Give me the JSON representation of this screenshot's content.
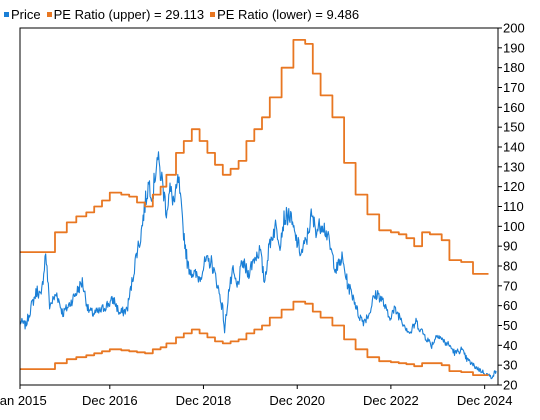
{
  "chart_data": {
    "type": "line",
    "xlim": [
      "2015-01-01",
      "2025-03-15"
    ],
    "ylim": [
      20,
      200
    ],
    "y_axis_position": "right",
    "grid": false,
    "legend_position": "top-left",
    "x_tick_labels": [
      {
        "date": "2015-01-01",
        "label": "Jan 2015"
      },
      {
        "date": "2016-12-01",
        "label": "Dec 2016"
      },
      {
        "date": "2018-12-01",
        "label": "Dec 2018"
      },
      {
        "date": "2020-12-01",
        "label": "Dec 2020"
      },
      {
        "date": "2022-12-01",
        "label": "Dec 2022"
      },
      {
        "date": "2024-12-01",
        "label": "Dec 2024"
      }
    ],
    "y_ticks": [
      20,
      30,
      40,
      50,
      60,
      70,
      80,
      90,
      100,
      110,
      120,
      130,
      140,
      150,
      160,
      170,
      180,
      190,
      200
    ],
    "series": [
      {
        "name": "Price",
        "color": "#1a7fd6",
        "step": false,
        "points": [
          [
            "2015-01-01",
            52
          ],
          [
            "2015-02-15",
            50
          ],
          [
            "2015-04-01",
            60
          ],
          [
            "2015-05-15",
            68
          ],
          [
            "2015-06-15",
            64
          ],
          [
            "2015-07-20",
            87
          ],
          [
            "2015-08-20",
            60
          ],
          [
            "2015-10-15",
            66
          ],
          [
            "2015-12-01",
            56
          ],
          [
            "2016-01-15",
            60
          ],
          [
            "2016-03-01",
            65
          ],
          [
            "2016-05-01",
            72
          ],
          [
            "2016-06-15",
            58
          ],
          [
            "2016-07-20",
            56
          ],
          [
            "2016-09-15",
            57
          ],
          [
            "2016-11-01",
            60
          ],
          [
            "2017-01-01",
            63
          ],
          [
            "2017-02-15",
            56
          ],
          [
            "2017-04-15",
            58
          ],
          [
            "2017-06-01",
            75
          ],
          [
            "2017-07-01",
            88
          ],
          [
            "2017-07-25",
            93
          ],
          [
            "2017-09-01",
            111
          ],
          [
            "2017-10-01",
            122
          ],
          [
            "2017-11-01",
            116
          ],
          [
            "2017-12-05",
            135
          ],
          [
            "2018-01-10",
            124
          ],
          [
            "2018-02-15",
            108
          ],
          [
            "2018-03-15",
            118
          ],
          [
            "2018-04-20",
            112
          ],
          [
            "2018-05-20",
            124
          ],
          [
            "2018-06-20",
            102
          ],
          [
            "2018-08-01",
            80
          ],
          [
            "2018-09-15",
            76
          ],
          [
            "2018-11-01",
            74
          ],
          [
            "2018-12-15",
            82
          ],
          [
            "2019-02-01",
            82
          ],
          [
            "2019-03-15",
            72
          ],
          [
            "2019-05-01",
            58
          ],
          [
            "2019-05-15",
            47
          ],
          [
            "2019-06-15",
            67
          ],
          [
            "2019-07-20",
            77
          ],
          [
            "2019-08-20",
            69
          ],
          [
            "2019-10-01",
            82
          ],
          [
            "2019-11-15",
            76
          ],
          [
            "2020-01-01",
            84
          ],
          [
            "2020-02-15",
            88
          ],
          [
            "2020-03-20",
            72
          ],
          [
            "2020-05-01",
            92
          ],
          [
            "2020-06-15",
            100
          ],
          [
            "2020-07-20",
            92
          ],
          [
            "2020-08-20",
            104
          ],
          [
            "2020-10-01",
            106
          ],
          [
            "2020-11-15",
            95
          ],
          [
            "2021-01-01",
            86
          ],
          [
            "2021-02-15",
            94
          ],
          [
            "2021-03-20",
            105
          ],
          [
            "2021-05-01",
            98
          ],
          [
            "2021-06-15",
            102
          ],
          [
            "2021-07-20",
            96
          ],
          [
            "2021-08-20",
            88
          ],
          [
            "2021-10-01",
            78
          ],
          [
            "2021-11-15",
            84
          ],
          [
            "2022-01-01",
            70
          ],
          [
            "2022-02-15",
            64
          ],
          [
            "2022-03-20",
            56
          ],
          [
            "2022-05-01",
            52
          ],
          [
            "2022-06-15",
            56
          ],
          [
            "2022-07-20",
            64
          ],
          [
            "2022-08-20",
            66
          ],
          [
            "2022-10-01",
            62
          ],
          [
            "2022-11-15",
            54
          ],
          [
            "2023-01-01",
            58
          ],
          [
            "2023-02-15",
            54
          ],
          [
            "2023-03-20",
            50
          ],
          [
            "2023-05-01",
            46
          ],
          [
            "2023-06-15",
            52
          ],
          [
            "2023-07-20",
            48
          ],
          [
            "2023-09-01",
            44
          ],
          [
            "2023-10-15",
            40
          ],
          [
            "2023-12-01",
            46
          ],
          [
            "2024-01-15",
            42
          ],
          [
            "2024-03-01",
            40
          ],
          [
            "2024-04-15",
            36
          ],
          [
            "2024-06-01",
            38
          ],
          [
            "2024-07-15",
            33
          ],
          [
            "2024-09-01",
            30
          ],
          [
            "2024-10-15",
            28
          ],
          [
            "2024-12-01",
            26
          ],
          [
            "2025-01-20",
            24
          ],
          [
            "2025-03-01",
            27
          ]
        ]
      },
      {
        "name": "PE Ratio (upper) = 29.113",
        "color": "#e87722",
        "step": true,
        "points": [
          [
            "2015-01-01",
            87
          ],
          [
            "2015-10-01",
            97
          ],
          [
            "2016-01-01",
            102
          ],
          [
            "2016-03-15",
            105
          ],
          [
            "2016-06-01",
            107
          ],
          [
            "2016-08-01",
            110
          ],
          [
            "2016-10-01",
            113
          ],
          [
            "2016-12-01",
            117
          ],
          [
            "2017-03-01",
            116
          ],
          [
            "2017-05-01",
            115
          ],
          [
            "2017-07-01",
            112
          ],
          [
            "2017-09-01",
            110
          ],
          [
            "2017-11-01",
            116
          ],
          [
            "2018-01-01",
            120
          ],
          [
            "2018-02-15",
            126
          ],
          [
            "2018-05-01",
            137
          ],
          [
            "2018-07-01",
            143
          ],
          [
            "2018-09-01",
            149
          ],
          [
            "2018-11-01",
            143
          ],
          [
            "2019-01-01",
            137
          ],
          [
            "2019-03-01",
            131
          ],
          [
            "2019-05-01",
            126
          ],
          [
            "2019-07-01",
            129
          ],
          [
            "2019-09-01",
            133
          ],
          [
            "2019-11-01",
            143
          ],
          [
            "2020-01-01",
            149
          ],
          [
            "2020-03-01",
            155
          ],
          [
            "2020-05-01",
            165
          ],
          [
            "2020-08-01",
            180
          ],
          [
            "2020-11-01",
            194
          ],
          [
            "2021-02-01",
            192
          ],
          [
            "2021-04-01",
            177
          ],
          [
            "2021-06-01",
            166
          ],
          [
            "2021-09-01",
            155
          ],
          [
            "2021-12-01",
            132
          ],
          [
            "2022-03-01",
            116
          ],
          [
            "2022-06-01",
            106
          ],
          [
            "2022-09-01",
            98
          ],
          [
            "2022-12-01",
            97
          ],
          [
            "2023-02-01",
            96
          ],
          [
            "2023-04-01",
            94
          ],
          [
            "2023-06-01",
            90
          ],
          [
            "2023-08-01",
            97
          ],
          [
            "2023-10-01",
            96
          ],
          [
            "2024-01-01",
            93
          ],
          [
            "2024-03-01",
            83
          ],
          [
            "2024-06-01",
            82
          ],
          [
            "2024-09-01",
            76
          ],
          [
            "2024-12-31",
            76
          ]
        ]
      },
      {
        "name": "PE Ratio (lower) = 9.486",
        "color": "#e87722",
        "step": true,
        "points": [
          [
            "2015-01-01",
            28
          ],
          [
            "2015-10-01",
            31
          ],
          [
            "2016-01-01",
            33
          ],
          [
            "2016-03-15",
            34
          ],
          [
            "2016-06-01",
            35
          ],
          [
            "2016-08-01",
            36
          ],
          [
            "2016-10-01",
            37
          ],
          [
            "2016-12-01",
            38
          ],
          [
            "2017-03-01",
            37.5
          ],
          [
            "2017-05-01",
            37
          ],
          [
            "2017-07-01",
            36.5
          ],
          [
            "2017-09-01",
            36
          ],
          [
            "2017-11-01",
            38
          ],
          [
            "2018-01-01",
            39
          ],
          [
            "2018-02-15",
            41
          ],
          [
            "2018-05-01",
            44
          ],
          [
            "2018-07-01",
            46
          ],
          [
            "2018-09-01",
            48
          ],
          [
            "2018-11-01",
            46
          ],
          [
            "2019-01-01",
            44
          ],
          [
            "2019-03-01",
            42
          ],
          [
            "2019-05-01",
            41
          ],
          [
            "2019-07-01",
            42
          ],
          [
            "2019-09-01",
            43
          ],
          [
            "2019-11-01",
            46
          ],
          [
            "2020-01-01",
            48
          ],
          [
            "2020-03-01",
            50
          ],
          [
            "2020-05-01",
            54
          ],
          [
            "2020-08-01",
            58
          ],
          [
            "2020-11-01",
            62
          ],
          [
            "2021-02-01",
            61
          ],
          [
            "2021-04-01",
            57
          ],
          [
            "2021-06-01",
            54
          ],
          [
            "2021-09-01",
            50
          ],
          [
            "2021-12-01",
            43
          ],
          [
            "2022-03-01",
            38
          ],
          [
            "2022-06-01",
            34
          ],
          [
            "2022-09-01",
            32
          ],
          [
            "2022-12-01",
            31.5
          ],
          [
            "2023-02-01",
            31
          ],
          [
            "2023-04-01",
            30.5
          ],
          [
            "2023-06-01",
            29.5
          ],
          [
            "2023-08-01",
            31
          ],
          [
            "2023-10-01",
            31
          ],
          [
            "2024-01-01",
            30
          ],
          [
            "2024-03-01",
            27
          ],
          [
            "2024-06-01",
            26.5
          ],
          [
            "2024-09-01",
            25
          ],
          [
            "2024-12-31",
            25
          ]
        ]
      }
    ]
  }
}
